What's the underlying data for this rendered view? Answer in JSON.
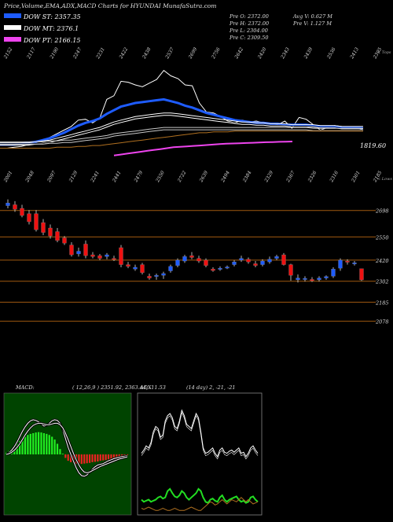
{
  "header": {
    "title": "Price,Volume,EMA,ADX,MACD Charts for HYUNDAI MunafaSutra.com"
  },
  "legend": [
    {
      "label": "DOW ST: 2357.35",
      "color": "#1e5cff"
    },
    {
      "label": "DOW MT: 2376.1",
      "color": "#ffffff"
    },
    {
      "label": "DOW PT: 2166.15",
      "color": "#ee44ee"
    }
  ],
  "quote": {
    "prev_open": "Pre   O: 2372.00",
    "prev_high": "Pre   H: 2372.00",
    "prev_low": "Pre   L: 2304.00",
    "prev_close": "Pre   C: 2309.50",
    "avg_volume": "Avg V: 0.627 M",
    "prev_volume": "Pre   V: 1.127 M"
  },
  "ema_panel": {
    "top_scale_label": "< Tops",
    "bottom_scale_label": "< Lows",
    "last_value_label": "1819.60",
    "top_labels": [
      "2152",
      "2117",
      "2190",
      "2247",
      "2231",
      "2422",
      "2438",
      "2537",
      "2699",
      "2756",
      "2642",
      "2420",
      "2343",
      "2439",
      "2536",
      "2413",
      "2395"
    ],
    "bottom_labels": [
      "2001",
      "2048",
      "2097",
      "2129",
      "2241",
      "2441",
      "2479",
      "2550",
      "2722",
      "2639",
      "2494",
      "2384",
      "2329",
      "2367",
      "2326",
      "2316",
      "2301",
      "2185"
    ]
  },
  "chart_data": [
    {
      "type": "line",
      "panel": "price-ema",
      "series": [
        {
          "color": "#ffffff",
          "values": [
            0.1,
            0.1,
            0.11,
            0.12,
            0.14,
            0.16,
            0.19,
            0.22,
            0.26,
            0.3,
            0.34,
            0.41,
            0.42,
            0.38,
            0.43,
            0.64,
            0.68,
            0.84,
            0.83,
            0.8,
            0.78,
            0.82,
            0.86,
            0.96,
            0.9,
            0.87,
            0.8,
            0.79,
            0.6,
            0.5,
            0.49,
            0.45,
            0.4,
            0.38,
            0.41,
            0.39,
            0.4,
            0.38,
            0.37,
            0.36,
            0.4,
            0.32,
            0.44,
            0.42,
            0.36,
            0.3,
            0.33,
            0.35,
            0.34,
            0.32,
            0.33,
            0.3
          ]
        },
        {
          "color": "#1e5cff",
          "values": [
            0.14,
            0.14,
            0.14,
            0.15,
            0.16,
            0.17,
            0.19,
            0.21,
            0.24,
            0.27,
            0.31,
            0.35,
            0.38,
            0.4,
            0.43,
            0.48,
            0.52,
            0.56,
            0.58,
            0.6,
            0.61,
            0.62,
            0.63,
            0.64,
            0.62,
            0.6,
            0.57,
            0.55,
            0.52,
            0.49,
            0.47,
            0.45,
            0.43,
            0.41,
            0.4,
            0.39,
            0.38,
            0.38,
            0.37,
            0.37,
            0.36,
            0.36,
            0.36,
            0.36,
            0.35,
            0.34,
            0.34,
            0.34,
            0.33,
            0.33,
            0.33,
            0.32
          ]
        },
        {
          "color": "#ffffff",
          "values": [
            0.16,
            0.16,
            0.16,
            0.16,
            0.16,
            0.17,
            0.18,
            0.19,
            0.21,
            0.23,
            0.25,
            0.27,
            0.29,
            0.31,
            0.33,
            0.36,
            0.39,
            0.41,
            0.43,
            0.45,
            0.46,
            0.47,
            0.48,
            0.49,
            0.49,
            0.48,
            0.47,
            0.46,
            0.45,
            0.44,
            0.43,
            0.42,
            0.41,
            0.4,
            0.39,
            0.39,
            0.38,
            0.38,
            0.37,
            0.37,
            0.37,
            0.36,
            0.36,
            0.36,
            0.36,
            0.35,
            0.35,
            0.35,
            0.34,
            0.34,
            0.34,
            0.34
          ]
        },
        {
          "color": "#c8c8c8",
          "values": [
            0.17,
            0.17,
            0.17,
            0.17,
            0.17,
            0.17,
            0.17,
            0.18,
            0.18,
            0.19,
            0.19,
            0.2,
            0.21,
            0.22,
            0.23,
            0.24,
            0.26,
            0.27,
            0.28,
            0.29,
            0.3,
            0.31,
            0.32,
            0.33,
            0.33,
            0.33,
            0.33,
            0.33,
            0.33,
            0.33,
            0.33,
            0.33,
            0.33,
            0.33,
            0.33,
            0.33,
            0.33,
            0.33,
            0.33,
            0.33,
            0.33,
            0.33,
            0.33,
            0.33,
            0.32,
            0.32,
            0.32,
            0.32,
            0.32,
            0.32,
            0.32,
            0.32
          ]
        },
        {
          "color": "#b07020",
          "values": [
            0.1,
            0.1,
            0.1,
            0.1,
            0.1,
            0.1,
            0.1,
            0.1,
            0.11,
            0.11,
            0.11,
            0.12,
            0.12,
            0.13,
            0.13,
            0.14,
            0.15,
            0.16,
            0.17,
            0.18,
            0.19,
            0.2,
            0.21,
            0.22,
            0.23,
            0.24,
            0.25,
            0.26,
            0.27,
            0.27,
            0.28,
            0.28,
            0.28,
            0.29,
            0.29,
            0.29,
            0.29,
            0.29,
            0.29,
            0.29,
            0.29,
            0.29,
            0.29,
            0.29,
            0.29,
            0.29,
            0.29,
            0.29,
            0.29,
            0.29,
            0.29,
            0.29
          ]
        },
        {
          "color": "#ee44ee",
          "values": [
            null,
            null,
            null,
            null,
            null,
            null,
            null,
            null,
            null,
            null,
            null,
            null,
            null,
            null,
            null,
            null,
            null,
            null,
            0.02,
            0.03,
            0.04,
            0.05,
            0.06,
            0.07,
            0.08,
            0.09,
            0.1,
            0.11,
            0.115,
            0.12,
            0.125,
            0.13,
            0.135,
            0.14,
            0.145,
            0.15,
            0.152,
            0.155,
            0.157,
            0.16,
            0.163,
            0.166,
            0.168,
            0.17,
            0.172,
            0.174
          ]
        }
      ]
    },
    {
      "type": "candlestick",
      "panel": "price",
      "price_levels": [
        "2698",
        "2550",
        "2420",
        "2302",
        "2185",
        "2078"
      ],
      "level_values": [
        2698,
        2550,
        2420,
        2302,
        2185,
        2078
      ],
      "ylim": [
        2000,
        2800
      ],
      "candles": [
        {
          "o": 2740,
          "h": 2760,
          "l": 2710,
          "c": 2725,
          "up": true
        },
        {
          "o": 2730,
          "h": 2750,
          "l": 2690,
          "c": 2705,
          "up": false
        },
        {
          "o": 2710,
          "h": 2730,
          "l": 2660,
          "c": 2670,
          "up": false
        },
        {
          "o": 2680,
          "h": 2700,
          "l": 2620,
          "c": 2635,
          "up": false
        },
        {
          "o": 2680,
          "h": 2700,
          "l": 2580,
          "c": 2590,
          "up": false
        },
        {
          "o": 2630,
          "h": 2650,
          "l": 2560,
          "c": 2575,
          "up": false
        },
        {
          "o": 2600,
          "h": 2620,
          "l": 2540,
          "c": 2555,
          "up": false
        },
        {
          "o": 2580,
          "h": 2600,
          "l": 2520,
          "c": 2530,
          "up": false
        },
        {
          "o": 2545,
          "h": 2555,
          "l": 2505,
          "c": 2515,
          "up": false
        },
        {
          "o": 2505,
          "h": 2520,
          "l": 2440,
          "c": 2450,
          "up": false
        },
        {
          "o": 2470,
          "h": 2490,
          "l": 2440,
          "c": 2455,
          "up": true
        },
        {
          "o": 2510,
          "h": 2530,
          "l": 2430,
          "c": 2445,
          "up": false
        },
        {
          "o": 2450,
          "h": 2465,
          "l": 2430,
          "c": 2440,
          "up": false
        },
        {
          "o": 2445,
          "h": 2455,
          "l": 2420,
          "c": 2430,
          "up": false
        },
        {
          "o": 2440,
          "h": 2460,
          "l": 2425,
          "c": 2450,
          "up": true
        },
        {
          "o": 2430,
          "h": 2445,
          "l": 2415,
          "c": 2425,
          "up": false
        },
        {
          "o": 2490,
          "h": 2505,
          "l": 2380,
          "c": 2395,
          "up": false
        },
        {
          "o": 2395,
          "h": 2410,
          "l": 2375,
          "c": 2385,
          "up": false
        },
        {
          "o": 2380,
          "h": 2395,
          "l": 2360,
          "c": 2370,
          "up": true
        },
        {
          "o": 2395,
          "h": 2405,
          "l": 2340,
          "c": 2350,
          "up": false
        },
        {
          "o": 2330,
          "h": 2345,
          "l": 2310,
          "c": 2320,
          "up": false
        },
        {
          "o": 2330,
          "h": 2345,
          "l": 2310,
          "c": 2335,
          "up": true
        },
        {
          "o": 2335,
          "h": 2355,
          "l": 2315,
          "c": 2345,
          "up": true
        },
        {
          "o": 2360,
          "h": 2395,
          "l": 2350,
          "c": 2385,
          "up": true
        },
        {
          "o": 2390,
          "h": 2430,
          "l": 2380,
          "c": 2420,
          "up": true
        },
        {
          "o": 2415,
          "h": 2450,
          "l": 2405,
          "c": 2440,
          "up": true
        },
        {
          "o": 2445,
          "h": 2465,
          "l": 2425,
          "c": 2435,
          "up": false
        },
        {
          "o": 2430,
          "h": 2445,
          "l": 2405,
          "c": 2415,
          "up": false
        },
        {
          "o": 2420,
          "h": 2430,
          "l": 2380,
          "c": 2390,
          "up": false
        },
        {
          "o": 2370,
          "h": 2380,
          "l": 2355,
          "c": 2362,
          "up": false
        },
        {
          "o": 2370,
          "h": 2385,
          "l": 2360,
          "c": 2375,
          "up": true
        },
        {
          "o": 2380,
          "h": 2390,
          "l": 2370,
          "c": 2382,
          "up": true
        },
        {
          "o": 2395,
          "h": 2420,
          "l": 2385,
          "c": 2410,
          "up": true
        },
        {
          "o": 2420,
          "h": 2445,
          "l": 2410,
          "c": 2430,
          "up": true
        },
        {
          "o": 2425,
          "h": 2435,
          "l": 2400,
          "c": 2410,
          "up": false
        },
        {
          "o": 2400,
          "h": 2415,
          "l": 2380,
          "c": 2390,
          "up": false
        },
        {
          "o": 2395,
          "h": 2425,
          "l": 2385,
          "c": 2415,
          "up": true
        },
        {
          "o": 2410,
          "h": 2440,
          "l": 2400,
          "c": 2425,
          "up": true
        },
        {
          "o": 2430,
          "h": 2450,
          "l": 2420,
          "c": 2440,
          "up": true
        },
        {
          "o": 2450,
          "h": 2460,
          "l": 2390,
          "c": 2395,
          "up": false
        },
        {
          "o": 2395,
          "h": 2400,
          "l": 2305,
          "c": 2335,
          "up": false
        },
        {
          "o": 2320,
          "h": 2340,
          "l": 2295,
          "c": 2310,
          "up": true
        },
        {
          "o": 2315,
          "h": 2330,
          "l": 2300,
          "c": 2318,
          "up": true
        },
        {
          "o": 2312,
          "h": 2325,
          "l": 2298,
          "c": 2305,
          "up": false
        },
        {
          "o": 2310,
          "h": 2330,
          "l": 2300,
          "c": 2320,
          "up": true
        },
        {
          "o": 2320,
          "h": 2335,
          "l": 2310,
          "c": 2328,
          "up": true
        },
        {
          "o": 2330,
          "h": 2380,
          "l": 2320,
          "c": 2370,
          "up": true
        },
        {
          "o": 2375,
          "h": 2430,
          "l": 2360,
          "c": 2420,
          "up": true
        },
        {
          "o": 2410,
          "h": 2425,
          "l": 2395,
          "c": 2415,
          "up": false
        },
        {
          "o": 2400,
          "h": 2415,
          "l": 2390,
          "c": 2405,
          "up": true
        },
        {
          "o": 2372,
          "h": 2372,
          "l": 2304,
          "c": 2309.5,
          "up": false
        }
      ]
    },
    {
      "type": "bar",
      "panel": "macd",
      "label": "MACD:",
      "params": "( 12,26,9 ) 2351.92,  2363.44,  -11.53",
      "values": [
        0.05,
        0.1,
        0.15,
        0.22,
        0.3,
        0.38,
        0.45,
        0.5,
        0.55,
        0.58,
        0.6,
        0.62,
        0.63,
        0.62,
        0.6,
        0.58,
        0.55,
        0.5,
        0.42,
        0.3,
        0.15,
        0.02,
        -0.1,
        -0.18,
        -0.22,
        -0.24,
        -0.26,
        -0.27,
        -0.27,
        -0.26,
        -0.25,
        -0.24,
        -0.22,
        -0.21,
        -0.2,
        -0.18,
        -0.17,
        -0.16,
        -0.14,
        -0.12,
        -0.1,
        -0.08,
        -0.06,
        -0.04,
        -0.03,
        -0.02
      ],
      "lines": [
        [
          0.0,
          0.05,
          0.12,
          0.22,
          0.35,
          0.5,
          0.65,
          0.78,
          0.88,
          0.95,
          0.98,
          0.96,
          0.92,
          0.86,
          0.8,
          0.82,
          0.88,
          0.95,
          0.98,
          0.96,
          0.88,
          0.7,
          0.45,
          0.2,
          0.0,
          -0.2,
          -0.38,
          -0.52,
          -0.6,
          -0.62,
          -0.58,
          -0.5,
          -0.42,
          -0.35,
          -0.3,
          -0.28,
          -0.26,
          -0.22,
          -0.18,
          -0.15,
          -0.12,
          -0.1,
          -0.08,
          -0.06,
          -0.05,
          -0.04
        ],
        [
          0.0,
          0.02,
          0.06,
          0.12,
          0.2,
          0.3,
          0.42,
          0.55,
          0.66,
          0.75,
          0.82,
          0.86,
          0.88,
          0.88,
          0.86,
          0.84,
          0.84,
          0.86,
          0.88,
          0.88,
          0.84,
          0.75,
          0.6,
          0.42,
          0.22,
          0.02,
          -0.15,
          -0.3,
          -0.42,
          -0.5,
          -0.52,
          -0.5,
          -0.46,
          -0.42,
          -0.38,
          -0.34,
          -0.31,
          -0.28,
          -0.25,
          -0.22,
          -0.19,
          -0.16,
          -0.13,
          -0.11,
          -0.09,
          -0.07
        ]
      ]
    },
    {
      "type": "line",
      "panel": "adx",
      "label": "ADX",
      "params": "(14 day) 2,  -21,  -21",
      "series": [
        {
          "color": "#ffffff",
          "values": [
            0.55,
            0.58,
            0.62,
            0.6,
            0.65,
            0.75,
            0.8,
            0.78,
            0.7,
            0.72,
            0.85,
            0.9,
            0.92,
            0.88,
            0.8,
            0.78,
            0.85,
            0.95,
            0.9,
            0.82,
            0.8,
            0.78,
            0.85,
            0.92,
            0.88,
            0.75,
            0.6,
            0.55,
            0.56,
            0.58,
            0.6,
            0.55,
            0.52,
            0.58,
            0.6,
            0.56,
            0.55,
            0.57,
            0.58,
            0.56,
            0.58,
            0.6,
            0.55,
            0.56,
            0.52,
            0.55,
            0.6,
            0.62,
            0.58,
            0.55
          ]
        },
        {
          "color": "#22dd22",
          "values": [
            0.12,
            0.1,
            0.11,
            0.12,
            0.1,
            0.11,
            0.12,
            0.14,
            0.15,
            0.13,
            0.14,
            0.2,
            0.22,
            0.18,
            0.15,
            0.14,
            0.16,
            0.2,
            0.18,
            0.14,
            0.12,
            0.14,
            0.16,
            0.18,
            0.22,
            0.2,
            0.14,
            0.1,
            0.09,
            0.12,
            0.13,
            0.11,
            0.1,
            0.14,
            0.16,
            0.12,
            0.1,
            0.12,
            0.13,
            0.14,
            0.15,
            0.12,
            0.1,
            0.11,
            0.09,
            0.1,
            0.14,
            0.15,
            0.12,
            0.1
          ]
        },
        {
          "color": "#b07020",
          "values": [
            0.04,
            0.03,
            0.04,
            0.05,
            0.04,
            0.03,
            0.02,
            0.02,
            0.03,
            0.04,
            0.03,
            0.02,
            0.02,
            0.03,
            0.04,
            0.03,
            0.02,
            0.02,
            0.02,
            0.03,
            0.04,
            0.05,
            0.04,
            0.03,
            0.02,
            0.02,
            0.04,
            0.06,
            0.08,
            0.1,
            0.09,
            0.07,
            0.08,
            0.1,
            0.12,
            0.1,
            0.08,
            0.1,
            0.12,
            0.11,
            0.1,
            0.12,
            0.14,
            0.12,
            0.1,
            0.12,
            0.1,
            0.08,
            0.09,
            0.1
          ]
        }
      ]
    }
  ]
}
